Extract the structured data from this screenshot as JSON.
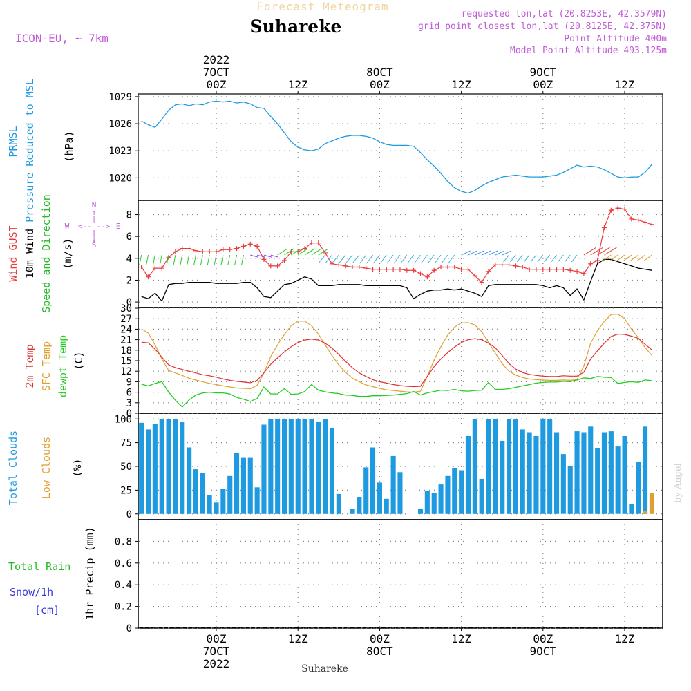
{
  "header": {
    "forecast_label": "Forecast Meteogram",
    "station": "Suhareke",
    "model": "ICON-EU, ~ 7km",
    "requested": "requested lon,lat (20.8253E, 42.3579N)",
    "grid_point": "grid point closest lon,lat (20.8125E, 42.375N)",
    "point_altitude": "Point Altitude 400m",
    "model_altitude": "Model Point Altitude 493.125m",
    "credit": "by Angel"
  },
  "time_axis": {
    "top_labels": [
      {
        "hour": 0,
        "lines": [
          "2022",
          "7OCT",
          "00Z"
        ]
      },
      {
        "hour": 12,
        "lines": [
          "12Z"
        ]
      },
      {
        "hour": 24,
        "lines": [
          "8OCT",
          "00Z"
        ]
      },
      {
        "hour": 36,
        "lines": [
          "12Z"
        ]
      },
      {
        "hour": 48,
        "lines": [
          "9OCT",
          "00Z"
        ]
      },
      {
        "hour": 60,
        "lines": [
          "12Z"
        ]
      }
    ],
    "bottom_labels": [
      {
        "hour": 0,
        "lines": [
          "00Z",
          "7OCT",
          "2022"
        ]
      },
      {
        "hour": 12,
        "lines": [
          "12Z"
        ]
      },
      {
        "hour": 24,
        "lines": [
          "00Z",
          "8OCT"
        ]
      },
      {
        "hour": 36,
        "lines": [
          "12Z"
        ]
      },
      {
        "hour": 48,
        "lines": [
          "00Z",
          "9OCT"
        ]
      },
      {
        "hour": 60,
        "lines": [
          "12Z"
        ]
      }
    ],
    "footer_station": "Suhareke"
  },
  "colors": {
    "pressure": "#1e9be0",
    "gust": "#e83c3c",
    "wind": "#000000",
    "barb": "#22bb22",
    "temp2m": "#e03030",
    "sfc": "#e0a030",
    "dewpt": "#22cc22",
    "total_clouds": "#1e9be0",
    "low_clouds": "#e0a030",
    "rain": "#22bb22",
    "snow": "#3a3adc",
    "purple": "#c05ad6"
  },
  "chart_data": [
    {
      "type": "line",
      "panel": "pressure",
      "title_lines": [
        "PRMSL",
        "Pressure Reduced to MSL"
      ],
      "ylabel": "(hPa)",
      "ylim": [
        1017.5,
        1029.3
      ],
      "yticks": [
        1020,
        1023,
        1026,
        1029
      ],
      "x": [
        -11,
        -10,
        -9,
        -8,
        -7,
        -6,
        -5,
        -4,
        -3,
        -2,
        -1,
        0,
        1,
        2,
        3,
        4,
        5,
        6,
        7,
        8,
        9,
        10,
        11,
        12,
        13,
        14,
        15,
        16,
        17,
        18,
        19,
        20,
        21,
        22,
        23,
        24,
        25,
        26,
        27,
        28,
        29,
        30,
        31,
        32,
        33,
        34,
        35,
        36,
        37,
        38,
        39,
        40,
        41,
        42,
        43,
        44,
        45,
        46,
        47,
        48,
        49,
        50,
        51,
        52,
        53,
        54,
        55,
        56,
        57,
        58,
        59,
        60,
        61,
        62,
        63,
        64
      ],
      "series": [
        {
          "name": "PRMSL",
          "values": [
            1026.3,
            1025.9,
            1025.6,
            1026.5,
            1027.5,
            1028.1,
            1028.2,
            1028.0,
            1028.2,
            1028.1,
            1028.4,
            1028.5,
            1028.4,
            1028.5,
            1028.3,
            1028.4,
            1028.2,
            1027.8,
            1027.7,
            1026.8,
            1026.0,
            1025.0,
            1024.0,
            1023.4,
            1023.1,
            1023.0,
            1023.2,
            1023.8,
            1024.1,
            1024.4,
            1024.6,
            1024.7,
            1024.7,
            1024.6,
            1024.4,
            1024.0,
            1023.7,
            1023.6,
            1023.6,
            1023.6,
            1023.5,
            1022.8,
            1022.0,
            1021.3,
            1020.5,
            1019.6,
            1018.9,
            1018.5,
            1018.3,
            1018.6,
            1019.1,
            1019.5,
            1019.8,
            1020.1,
            1020.2,
            1020.3,
            1020.2,
            1020.1,
            1020.1,
            1020.1,
            1020.2,
            1020.3,
            1020.6,
            1021.0,
            1021.4,
            1021.2,
            1021.3,
            1021.2,
            1020.9,
            1020.5,
            1020.1,
            1020.0,
            1020.1,
            1020.1,
            1020.6,
            1021.5
          ]
        }
      ]
    },
    {
      "type": "line",
      "panel": "wind",
      "title_lines": [
        "Wind GUST",
        "10m Wind",
        "Speed and Direction"
      ],
      "ylabel": "(m/s)",
      "compass_labels": {
        "north": "N",
        "west": "W",
        "east": "E",
        "south": "S"
      },
      "ylim": [
        -0.5,
        9.3
      ],
      "yticks": [
        0,
        2,
        4,
        6,
        8
      ],
      "x": [
        -11,
        -10,
        -9,
        -8,
        -7,
        -6,
        -5,
        -4,
        -3,
        -2,
        -1,
        0,
        1,
        2,
        3,
        4,
        5,
        6,
        7,
        8,
        9,
        10,
        11,
        12,
        13,
        14,
        15,
        16,
        17,
        18,
        19,
        20,
        21,
        22,
        23,
        24,
        25,
        26,
        27,
        28,
        29,
        30,
        31,
        32,
        33,
        34,
        35,
        36,
        37,
        38,
        39,
        40,
        41,
        42,
        43,
        44,
        45,
        46,
        47,
        48,
        49,
        50,
        51,
        52,
        53,
        54,
        55,
        56,
        57,
        58,
        59,
        60,
        61,
        62,
        63,
        64
      ],
      "series": [
        {
          "name": "Wind GUST",
          "values": [
            3.2,
            2.3,
            3.1,
            3.1,
            4.1,
            4.6,
            4.9,
            4.9,
            4.7,
            4.6,
            4.6,
            4.6,
            4.8,
            4.8,
            4.9,
            5.1,
            5.3,
            5.1,
            3.9,
            3.3,
            3.3,
            3.8,
            4.6,
            4.6,
            4.9,
            5.4,
            5.4,
            4.5,
            3.5,
            3.4,
            3.3,
            3.2,
            3.2,
            3.1,
            3.0,
            3.0,
            3.0,
            3.0,
            3.0,
            2.9,
            2.9,
            2.6,
            2.3,
            2.9,
            3.2,
            3.2,
            3.2,
            3.0,
            3.0,
            2.4,
            1.8,
            2.8,
            3.4,
            3.4,
            3.4,
            3.3,
            3.2,
            3.0,
            3.0,
            3.0,
            3.0,
            3.0,
            3.0,
            2.9,
            2.8,
            2.6,
            3.5,
            3.8,
            6.8,
            8.4,
            8.6,
            8.5,
            7.6,
            7.5,
            7.3,
            7.1
          ]
        },
        {
          "name": "10m Wind",
          "values": [
            0.5,
            0.3,
            0.8,
            0.1,
            1.6,
            1.7,
            1.7,
            1.8,
            1.8,
            1.8,
            1.8,
            1.7,
            1.7,
            1.7,
            1.7,
            1.8,
            1.8,
            1.3,
            0.5,
            0.4,
            1.0,
            1.6,
            1.7,
            2.0,
            2.3,
            2.1,
            1.5,
            1.5,
            1.5,
            1.6,
            1.6,
            1.6,
            1.6,
            1.5,
            1.5,
            1.5,
            1.5,
            1.5,
            1.5,
            1.3,
            0.3,
            0.7,
            1.0,
            1.1,
            1.1,
            1.2,
            1.1,
            1.2,
            1.0,
            0.8,
            0.5,
            1.5,
            1.6,
            1.6,
            1.6,
            1.6,
            1.6,
            1.6,
            1.6,
            1.5,
            1.3,
            1.5,
            1.3,
            0.6,
            1.2,
            0.2,
            1.9,
            3.5,
            3.9,
            3.9,
            3.7,
            3.5,
            3.3,
            3.1,
            3.0,
            2.9
          ]
        }
      ]
    },
    {
      "type": "line",
      "panel": "temperature",
      "title_lines": [
        "2m Temp",
        "SFC Temp",
        "dewpt Temp"
      ],
      "ylabel": "(C)",
      "ylim": [
        0,
        30.2
      ],
      "yticks": [
        0,
        3,
        6,
        9,
        12,
        15,
        18,
        21,
        24,
        27,
        30
      ],
      "x": [
        -11,
        -10,
        -9,
        -8,
        -7,
        -6,
        -5,
        -4,
        -3,
        -2,
        -1,
        0,
        1,
        2,
        3,
        4,
        5,
        6,
        7,
        8,
        9,
        10,
        11,
        12,
        13,
        14,
        15,
        16,
        17,
        18,
        19,
        20,
        21,
        22,
        23,
        24,
        25,
        26,
        27,
        28,
        29,
        30,
        31,
        32,
        33,
        34,
        35,
        36,
        37,
        38,
        39,
        40,
        41,
        42,
        43,
        44,
        45,
        46,
        47,
        48,
        49,
        50,
        51,
        52,
        53,
        54,
        55,
        56,
        57,
        58,
        59,
        60,
        61,
        62,
        63,
        64
      ],
      "series": [
        {
          "name": "2m Temp",
          "values": [
            20.3,
            20.1,
            18.3,
            16.0,
            13.8,
            13.0,
            12.5,
            12.0,
            11.5,
            11.0,
            10.7,
            10.3,
            9.8,
            9.4,
            9.1,
            8.9,
            8.7,
            9.4,
            11.5,
            14.0,
            15.8,
            17.5,
            19.0,
            20.2,
            20.9,
            21.2,
            20.9,
            20.0,
            18.6,
            16.8,
            14.8,
            13.0,
            11.5,
            10.5,
            9.6,
            9.0,
            8.6,
            8.2,
            7.9,
            7.7,
            7.6,
            7.7,
            10.5,
            13.3,
            15.5,
            17.3,
            18.9,
            20.2,
            21.0,
            21.3,
            21.0,
            20.0,
            18.7,
            16.5,
            14.2,
            12.6,
            11.6,
            11.1,
            10.8,
            10.6,
            10.5,
            10.5,
            10.7,
            10.6,
            10.6,
            11.7,
            15.5,
            17.8,
            20.0,
            21.9,
            22.6,
            22.5,
            22.0,
            21.4,
            19.7,
            18.1
          ]
        },
        {
          "name": "SFC Temp",
          "values": [
            24.1,
            22.9,
            19.5,
            15.5,
            12.2,
            11.5,
            10.8,
            10.0,
            9.5,
            9.0,
            8.5,
            8.2,
            7.8,
            7.5,
            7.2,
            7.1,
            7.0,
            8.0,
            11.5,
            16.2,
            19.5,
            22.5,
            25.0,
            26.3,
            26.3,
            25.0,
            22.6,
            19.5,
            16.5,
            13.8,
            11.7,
            10.0,
            9.0,
            8.1,
            7.6,
            7.1,
            6.7,
            6.5,
            6.3,
            6.1,
            6.0,
            6.3,
            10.5,
            15.2,
            19.0,
            22.3,
            24.6,
            25.8,
            25.9,
            25.2,
            23.3,
            20.2,
            17.2,
            14.2,
            12.0,
            10.9,
            10.2,
            9.8,
            9.6,
            9.5,
            9.4,
            9.4,
            9.5,
            9.4,
            9.6,
            13.5,
            20.0,
            23.6,
            26.2,
            28.2,
            28.3,
            27.0,
            24.0,
            21.6,
            18.8,
            16.5
          ]
        },
        {
          "name": "dewpt Temp",
          "values": [
            8.3,
            7.8,
            8.5,
            9.0,
            6.0,
            3.7,
            1.8,
            3.8,
            5.2,
            5.8,
            6.0,
            5.8,
            5.8,
            5.5,
            4.5,
            4.0,
            3.4,
            4.2,
            7.5,
            5.5,
            5.5,
            7.0,
            5.4,
            5.5,
            6.2,
            8.2,
            6.6,
            6.1,
            5.8,
            5.6,
            5.2,
            5.1,
            4.8,
            4.8,
            5.0,
            5.0,
            5.1,
            5.2,
            5.4,
            5.6,
            6.2,
            5.2,
            5.8,
            6.2,
            6.6,
            6.5,
            6.8,
            6.4,
            6.3,
            6.5,
            6.6,
            8.8,
            6.8,
            6.8,
            7.0,
            7.4,
            7.8,
            8.2,
            8.6,
            8.8,
            8.9,
            8.9,
            9.1,
            9.0,
            9.5,
            10.1,
            9.9,
            10.5,
            10.3,
            10.2,
            8.5,
            8.8,
            9.0,
            8.8,
            9.5,
            9.3
          ]
        }
      ]
    },
    {
      "type": "bar",
      "panel": "clouds",
      "title_lines": [
        "Total Clouds",
        "Low Clouds"
      ],
      "ylabel": "(%)",
      "ylim": [
        -6,
        106
      ],
      "yticks": [
        0,
        25,
        50,
        75,
        100
      ],
      "x": [
        -11,
        -10,
        -9,
        -8,
        -7,
        -6,
        -5,
        -4,
        -3,
        -2,
        -1,
        0,
        1,
        2,
        3,
        4,
        5,
        6,
        7,
        8,
        9,
        10,
        11,
        12,
        13,
        14,
        15,
        16,
        17,
        18,
        19,
        20,
        21,
        22,
        23,
        24,
        25,
        26,
        27,
        28,
        29,
        30,
        31,
        32,
        33,
        34,
        35,
        36,
        37,
        38,
        39,
        40,
        41,
        42,
        43,
        44,
        45,
        46,
        47,
        48,
        49,
        50,
        51,
        52,
        53,
        54,
        55,
        56,
        57,
        58,
        59,
        60,
        61,
        62,
        63,
        64
      ],
      "series": [
        {
          "name": "Total Clouds",
          "values": [
            96,
            89,
            95,
            100,
            100,
            100,
            97,
            70,
            47,
            43,
            20,
            12,
            26,
            40,
            64,
            59,
            59,
            28,
            94,
            100,
            100,
            100,
            100,
            100,
            100,
            100,
            97,
            100,
            90,
            21,
            0,
            5,
            18,
            49,
            70,
            33,
            16,
            61,
            44,
            0,
            0,
            5,
            24,
            22,
            31,
            40,
            48,
            46,
            82,
            100,
            37,
            100,
            100,
            77,
            100,
            100,
            89,
            86,
            82,
            100,
            100,
            86,
            63,
            50,
            87,
            86,
            92,
            69,
            86,
            87,
            71,
            82,
            10,
            55,
            92,
            0
          ]
        },
        {
          "name": "Low Clouds",
          "values": [
            0,
            0,
            0,
            0,
            0,
            0,
            0,
            0,
            0,
            0,
            0,
            0,
            0,
            0,
            0,
            0,
            0,
            0,
            0,
            0,
            0,
            0,
            0,
            0,
            0,
            0,
            0,
            0,
            0,
            0,
            0,
            0,
            0,
            0,
            0,
            0,
            0,
            0,
            0,
            0,
            0,
            0,
            0,
            0,
            0,
            0,
            0,
            0,
            0,
            0,
            0,
            0,
            0,
            0,
            0,
            0,
            0,
            0,
            0,
            0,
            0,
            0,
            0,
            0,
            0,
            0,
            0,
            0,
            0,
            0,
            0,
            0,
            0,
            0,
            3,
            22
          ]
        }
      ]
    },
    {
      "type": "bar",
      "panel": "precip",
      "title_lines": [
        "Total  Rain",
        "Snow/1h",
        "[cm]"
      ],
      "ylabel": "1hr Precip (mm)",
      "ylim": [
        0,
        1.0
      ],
      "yticks": [
        0,
        0.2,
        0.4,
        0.6,
        0.8
      ],
      "ytick_labels": [
        "0",
        "0.2",
        "0.4",
        "0.6",
        "0.8"
      ],
      "series": [
        {
          "name": "Total Rain",
          "values": []
        },
        {
          "name": "Snow/1h",
          "values": []
        }
      ]
    }
  ]
}
